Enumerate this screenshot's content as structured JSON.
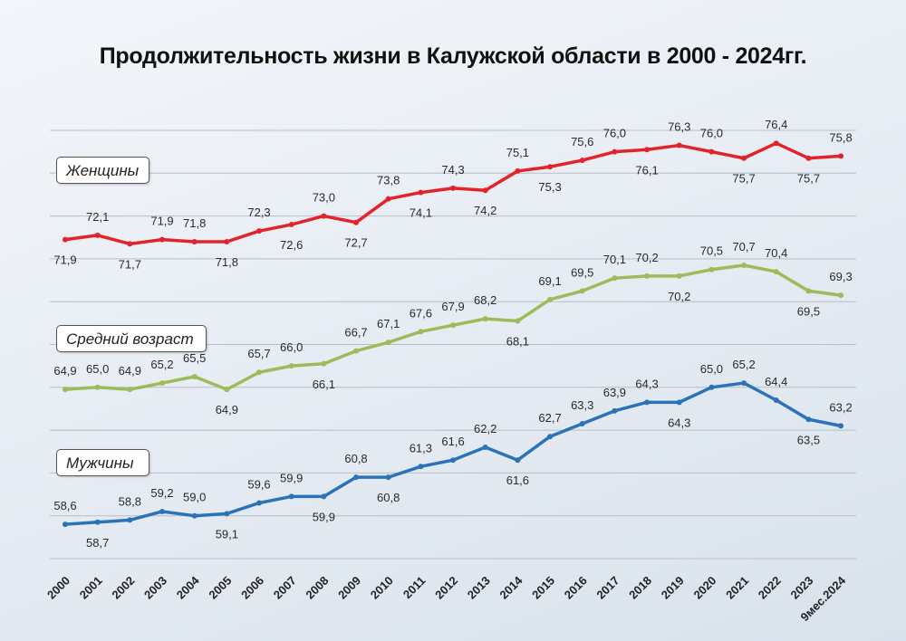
{
  "chart_data": {
    "type": "line",
    "title": "Продолжительность жизни в Калужской области в 2000 - 2024гг.",
    "categories": [
      "2000",
      "2001",
      "2002",
      "2003",
      "2004",
      "2005",
      "2006",
      "2007",
      "2008",
      "2009",
      "2010",
      "2011",
      "2012",
      "2013",
      "2014",
      "2015",
      "2016",
      "2017",
      "2018",
      "2019",
      "2020",
      "2021",
      "2022",
      "2023",
      "9мес.2024"
    ],
    "ylim": [
      57,
      77
    ],
    "grid": true,
    "series": [
      {
        "name": "Женщины",
        "color": "#e3232b",
        "values": [
          71.9,
          72.1,
          71.7,
          71.9,
          71.8,
          71.8,
          72.3,
          72.6,
          73.0,
          72.7,
          73.8,
          74.1,
          74.3,
          74.2,
          75.1,
          75.3,
          75.6,
          76.0,
          76.1,
          76.3,
          76.0,
          75.7,
          76.4,
          75.7,
          75.8
        ],
        "labels": [
          "71,9",
          "72,1",
          "71,7",
          "71,9",
          "71,8",
          "71,8",
          "72,3",
          "72,6",
          "73,0",
          "72,7",
          "73,8",
          "74,1",
          "74,3",
          "74,2",
          "75,1",
          "75,3",
          "75,6",
          "76,0",
          "76,1",
          "76,3",
          "76,0",
          "75,7",
          "76,4",
          "75,7",
          "75,8"
        ]
      },
      {
        "name": "Средний возраст",
        "color": "#9cbb59",
        "values": [
          64.9,
          65.0,
          64.9,
          65.2,
          65.5,
          64.9,
          65.7,
          66.0,
          66.1,
          66.7,
          67.1,
          67.6,
          67.9,
          68.2,
          68.1,
          69.1,
          69.5,
          70.1,
          70.2,
          70.2,
          70.5,
          70.7,
          70.4,
          69.5,
          69.3
        ],
        "labels": [
          "64,9",
          "65,0",
          "64,9",
          "65,2",
          "65,5",
          "64,9",
          "65,7",
          "66,0",
          "66,1",
          "66,7",
          "67,1",
          "67,6",
          "67,9",
          "68,2",
          "68,1",
          "69,1",
          "69,5",
          "70,1",
          "70,2",
          "70,2",
          "70,5",
          "70,7",
          "70,4",
          "69,5",
          "69,3"
        ]
      },
      {
        "name": "Мужчины",
        "color": "#2a73b8",
        "values": [
          58.6,
          58.7,
          58.8,
          59.2,
          59.0,
          59.1,
          59.6,
          59.9,
          59.9,
          60.8,
          60.8,
          61.3,
          61.6,
          62.2,
          61.6,
          62.7,
          63.3,
          63.9,
          64.3,
          64.3,
          65.0,
          65.2,
          64.4,
          63.5,
          63.2
        ],
        "labels": [
          "58,6",
          "58,7",
          "58,8",
          "59,2",
          "59,0",
          "59,1",
          "59,6",
          "59,9",
          "59,9",
          "60,8",
          "60,8",
          "61,3",
          "61,6",
          "62,2",
          "61,6",
          "62,7",
          "63,3",
          "63,9",
          "64,3",
          "64,3",
          "65,0",
          "65,2",
          "64,4",
          "63,5",
          "63,2"
        ]
      }
    ]
  }
}
